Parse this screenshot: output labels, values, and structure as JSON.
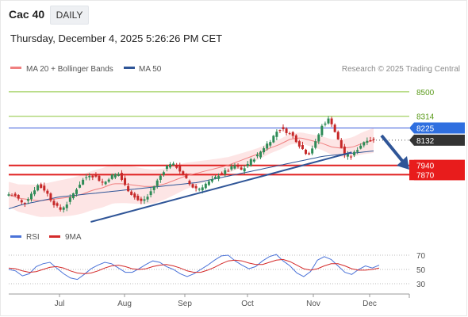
{
  "header": {
    "symbol": "Cac 40",
    "timeframe": "DAILY",
    "datetime": "Thursday, December 4, 2025 5:26:26 PM CET"
  },
  "legend": {
    "ma20_bb": "MA 20 + Bollinger Bands",
    "ma50": "MA 50",
    "credit": "Research © 2025 Trading Central",
    "rsi": "RSI",
    "ma9": "9MA"
  },
  "colors": {
    "ma20": "#f08080",
    "ma50": "#2f5597",
    "band_fill": "#fde0e0",
    "bullish": "#2e8b57",
    "bearish": "#c62828",
    "resistance": "#8dc63f",
    "pivot": "#3b5bdb",
    "support": "#e02020",
    "trendline": "#2f5597",
    "rsi_line": "#4a72d8",
    "rsi_ma": "#d42a2a"
  },
  "chart_data": [
    {
      "type": "candlestick",
      "title": "Cac 40",
      "x_ticks": [
        "Jul",
        "Aug",
        "Sep",
        "Oct",
        "Nov",
        "Dec"
      ],
      "price_range": [
        7480,
        8620
      ],
      "levels": [
        {
          "kind": "resistance",
          "label": "8500",
          "value": 8500
        },
        {
          "kind": "resistance",
          "label": "8314",
          "value": 8314
        },
        {
          "kind": "pivot",
          "label": "8225",
          "value": 8225
        },
        {
          "kind": "last",
          "label": "8132",
          "value": 8132
        },
        {
          "kind": "support",
          "label": "7940",
          "value": 7940
        },
        {
          "kind": "support",
          "label": "7870",
          "value": 7870
        }
      ],
      "trendline": {
        "from": {
          "x": 0.22,
          "y": 7510
        },
        "to": {
          "x": 0.92,
          "y": 8040
        }
      },
      "arrow": "down",
      "anchors": [
        7720,
        7705,
        7640,
        7720,
        7790,
        7750,
        7660,
        7600,
        7650,
        7740,
        7820,
        7870,
        7850,
        7800,
        7860,
        7880,
        7780,
        7710,
        7660,
        7700,
        7790,
        7880,
        7960,
        7930,
        7860,
        7780,
        7760,
        7800,
        7830,
        7880,
        7900,
        7940,
        7900,
        7970,
        8010,
        8080,
        8140,
        8220,
        8200,
        8160,
        8080,
        8020,
        8110,
        8250,
        8300,
        8150,
        8020,
        8010,
        8080,
        8140,
        8132
      ],
      "ma20": [
        7720,
        7690,
        7680,
        7670,
        7680,
        7690,
        7700,
        7720,
        7750,
        7770,
        7800,
        7800,
        7790,
        7780,
        7780,
        7800,
        7830,
        7860,
        7880,
        7900,
        7920,
        7940,
        7970,
        8000,
        8030,
        8070,
        8100,
        8140,
        8150,
        8130,
        8110,
        8080,
        8070,
        8080,
        8110,
        8130
      ],
      "ma50": [
        7610,
        7640,
        7660,
        7680,
        7700,
        7710,
        7720,
        7730,
        7740,
        7750,
        7760,
        7770,
        7780,
        7790,
        7800,
        7810,
        7830,
        7850,
        7870,
        7890,
        7910,
        7930,
        7950,
        7970,
        7990,
        8010,
        8020,
        8030,
        8040,
        8050
      ]
    },
    {
      "type": "line",
      "title": "RSI",
      "y_ticks": [
        70,
        50,
        30
      ],
      "ylim": [
        20,
        80
      ],
      "series": [
        {
          "name": "RSI",
          "values": [
            50,
            48,
            41,
            44,
            54,
            58,
            60,
            52,
            44,
            38,
            36,
            43,
            51,
            56,
            60,
            58,
            52,
            46,
            46,
            51,
            57,
            62,
            60,
            54,
            50,
            44,
            40,
            44,
            50,
            56,
            63,
            69,
            70,
            62,
            56,
            51,
            54,
            62,
            68,
            71,
            62,
            55,
            45,
            40,
            47,
            63,
            68,
            64,
            55,
            46,
            43,
            50,
            55,
            52,
            56
          ]
        },
        {
          "name": "9MA",
          "values": [
            52,
            51,
            48,
            46,
            47,
            50,
            53,
            54,
            52,
            48,
            45,
            44,
            45,
            48,
            52,
            55,
            56,
            54,
            51,
            50,
            51,
            54,
            56,
            57,
            55,
            52,
            48,
            46,
            46,
            49,
            53,
            58,
            62,
            63,
            62,
            59,
            57,
            57,
            60,
            63,
            64,
            61,
            56,
            51,
            49,
            51,
            55,
            58,
            58,
            55,
            51,
            49,
            49,
            50,
            52
          ]
        }
      ]
    }
  ]
}
